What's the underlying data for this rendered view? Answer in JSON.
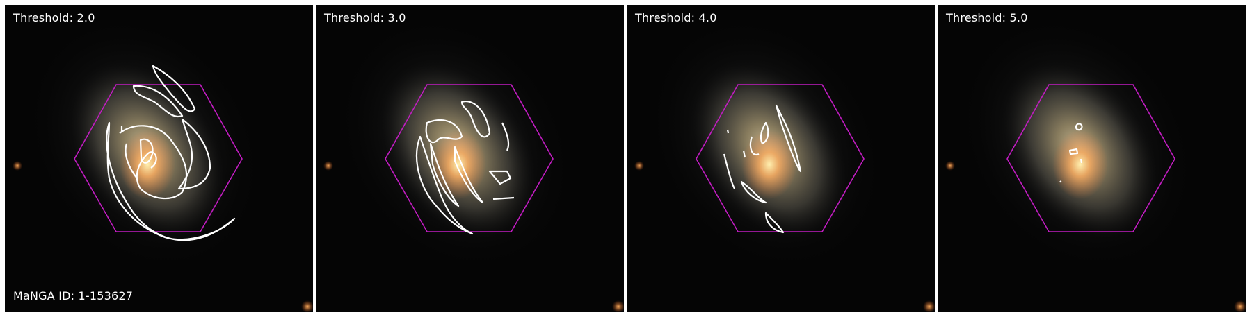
{
  "panels": [
    {
      "threshold_label": "Threshold: 2.0"
    },
    {
      "threshold_label": "Threshold: 3.0"
    },
    {
      "threshold_label": "Threshold: 4.0"
    },
    {
      "threshold_label": "Threshold: 5.0"
    }
  ],
  "manga_id_label": "MaNGA ID: 1-153627",
  "colors": {
    "background": "#050505",
    "hexagon": "#c21cc2",
    "contour": "#ffffff",
    "galaxy_core": "#e8a060",
    "galaxy_disk": "#b8b090"
  },
  "icons": {
    "galaxy": "spiral-galaxy-image",
    "bundle": "hexagon-ifu-footprint",
    "contour": "contour-lines"
  }
}
